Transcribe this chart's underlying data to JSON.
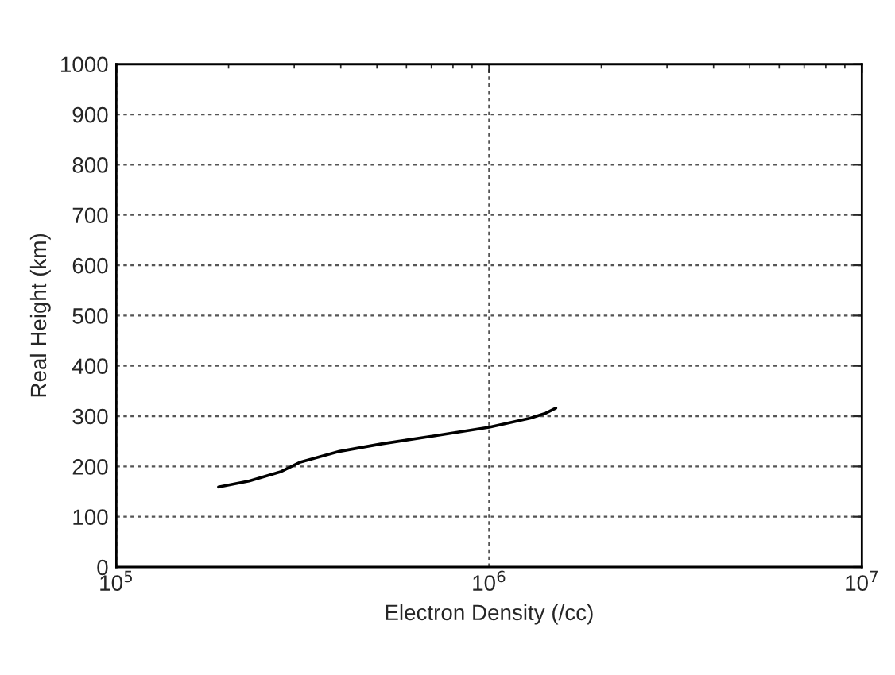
{
  "chart_data": {
    "type": "line",
    "xlabel": "Electron Density (/cc)",
    "ylabel": "Real Height (km)",
    "log": "x",
    "xlim": [
      100000,
      10000000
    ],
    "xticks": [
      {
        "value": 100000,
        "label": "10$^{5}$"
      },
      {
        "value": 1000000,
        "label": "10$^{6}$"
      },
      {
        "value": 10000000,
        "label": "10$^{7}$"
      }
    ],
    "ylim": [
      0,
      1000
    ],
    "yticks": [
      0,
      100,
      200,
      300,
      400,
      500,
      600,
      700,
      800,
      900,
      1000
    ],
    "grid": true,
    "line_style": "solid",
    "marker": "none",
    "series": [
      {
        "color": "#000000",
        "x": [
          188000,
          227000,
          277000,
          310000,
          397000,
          515000,
          715000,
          1000000,
          1290000,
          1420000,
          1510000
        ],
        "values": [
          159,
          171,
          190,
          208,
          230,
          245,
          261,
          278,
          296,
          306,
          316
        ]
      }
    ]
  }
}
